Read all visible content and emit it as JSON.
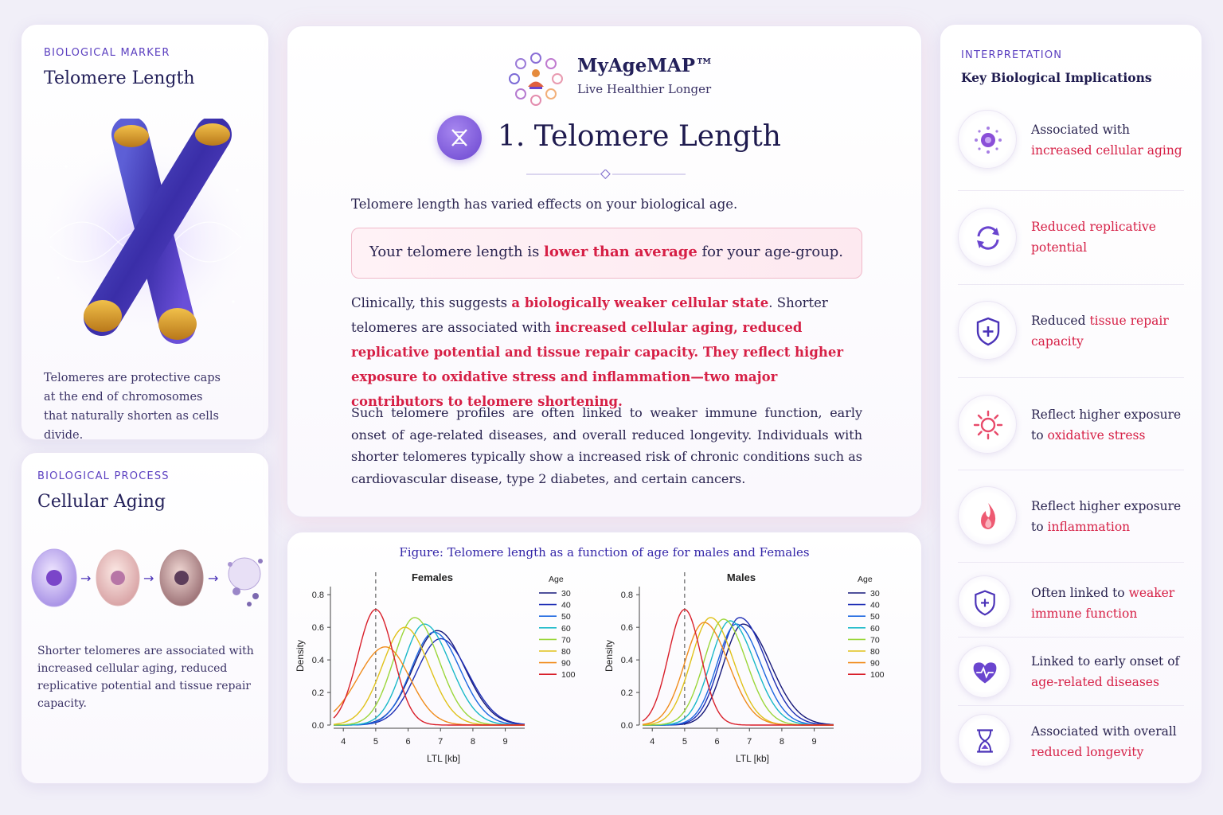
{
  "marker": {
    "kicker": "BIOLOGICAL MARKER",
    "title": "Telomere Length",
    "description": "Telomeres are protective caps at the end of chromosomes that naturally shorten as cells divide."
  },
  "process": {
    "kicker": "BIOLOGICAL PROCESS",
    "title": "Cellular Aging",
    "description": "Shorter telomeres are associated with increased cellular aging, reduced replicative potential and tissue repair capacity."
  },
  "brand": {
    "name": "MyAgeMAP™",
    "tagline": "Live Healthier Longer"
  },
  "main": {
    "section_title": "1. Telomere Length",
    "intro": "Telomere length has varied effects on your biological age.",
    "result_prefix": "Your telomere length is ",
    "result_emph": "lower than average",
    "result_suffix": " for your age-group.",
    "clinical_prefix": "Clinically, this suggests ",
    "clinical_emph1": " a  biologically weaker cellular state",
    "clinical_mid": ". Shorter telomeres are associated with ",
    "clinical_emph2": "increased cellular aging, reduced replicative potential and tissue repair capacity. They reflect higher exposure to oxidative stress and inflammation—two major contributors to telomere shortening.",
    "profiles": "Such telomere profiles are often linked to weaker immune function, early onset of age-related diseases, and overall reduced longevity. Individuals with shorter telomeres typically show a increased risk of chronic conditions such as cardiovascular disease, type 2 diabetes, and certain cancers."
  },
  "figure": {
    "caption": "Figure: Telomere length as a function of age for males and Females"
  },
  "chart_data": [
    {
      "type": "line",
      "title": "Females",
      "xlabel": "LTL [kb]",
      "ylabel": "Density",
      "xlim": [
        3.7,
        9.6
      ],
      "ylim": [
        0,
        0.85
      ],
      "xticks": [
        4,
        5,
        6,
        7,
        8,
        9
      ],
      "yticks": [
        "0.0",
        "0.2",
        "0.4",
        "0.6",
        "0.8"
      ],
      "reference_line_x": 5,
      "legend_title": "Age",
      "legend_position": "top-right",
      "series": [
        {
          "name": "30",
          "color": "#16187a",
          "peak": 6.9,
          "height": 0.58,
          "sd_left": 0.75,
          "sd_right": 0.85
        },
        {
          "name": "40",
          "color": "#1f2fb5",
          "peak": 7.0,
          "height": 0.53,
          "sd_left": 0.75,
          "sd_right": 0.85
        },
        {
          "name": "50",
          "color": "#1d67e0",
          "peak": 6.8,
          "height": 0.57,
          "sd_left": 0.7,
          "sd_right": 0.8
        },
        {
          "name": "60",
          "color": "#19b8c8",
          "peak": 6.5,
          "height": 0.62,
          "sd_left": 0.65,
          "sd_right": 0.8
        },
        {
          "name": "70",
          "color": "#9bd63a",
          "peak": 6.2,
          "height": 0.66,
          "sd_left": 0.65,
          "sd_right": 0.75
        },
        {
          "name": "80",
          "color": "#e0c21a",
          "peak": 5.9,
          "height": 0.6,
          "sd_left": 0.7,
          "sd_right": 0.75
        },
        {
          "name": "90",
          "color": "#f08c1c",
          "peak": 5.3,
          "height": 0.48,
          "sd_left": 0.85,
          "sd_right": 0.75
        },
        {
          "name": "100",
          "color": "#d91f2a",
          "peak": 5.0,
          "height": 0.71,
          "sd_left": 0.55,
          "sd_right": 0.55
        }
      ]
    },
    {
      "type": "line",
      "title": "Males",
      "xlabel": "LTL [kb]",
      "ylabel": "Density",
      "xlim": [
        3.7,
        9.6
      ],
      "ylim": [
        0,
        0.85
      ],
      "xticks": [
        4,
        5,
        6,
        7,
        8,
        9
      ],
      "yticks": [
        "0.0",
        "0.2",
        "0.4",
        "0.6",
        "0.8"
      ],
      "reference_line_x": 5,
      "legend_title": "Age",
      "legend_position": "top-right",
      "series": [
        {
          "name": "30",
          "color": "#16187a",
          "peak": 6.8,
          "height": 0.62,
          "sd_left": 0.6,
          "sd_right": 0.85
        },
        {
          "name": "40",
          "color": "#1f2fb5",
          "peak": 6.7,
          "height": 0.66,
          "sd_left": 0.6,
          "sd_right": 0.8
        },
        {
          "name": "50",
          "color": "#1d67e0",
          "peak": 6.6,
          "height": 0.62,
          "sd_left": 0.6,
          "sd_right": 0.75
        },
        {
          "name": "60",
          "color": "#19b8c8",
          "peak": 6.4,
          "height": 0.64,
          "sd_left": 0.6,
          "sd_right": 0.75
        },
        {
          "name": "70",
          "color": "#9bd63a",
          "peak": 6.2,
          "height": 0.65,
          "sd_left": 0.6,
          "sd_right": 0.7
        },
        {
          "name": "80",
          "color": "#e0c21a",
          "peak": 5.8,
          "height": 0.66,
          "sd_left": 0.6,
          "sd_right": 0.7
        },
        {
          "name": "90",
          "color": "#f08c1c",
          "peak": 5.6,
          "height": 0.63,
          "sd_left": 0.6,
          "sd_right": 0.75
        },
        {
          "name": "100",
          "color": "#d91f2a",
          "peak": 5.0,
          "height": 0.71,
          "sd_left": 0.5,
          "sd_right": 0.5
        }
      ]
    }
  ],
  "interpretation": {
    "kicker": "INTERPRETATION",
    "title": "Key Biological Implications",
    "items": [
      {
        "icon": "cell-icon",
        "plain": "Associated with ",
        "emph": "increased cellular aging"
      },
      {
        "icon": "cycle-arrows-icon",
        "plain": "",
        "emph": "Reduced replicative potential"
      },
      {
        "icon": "shield-plus-icon",
        "plain": "Reduced ",
        "emph": "tissue repair capacity"
      },
      {
        "icon": "sun-icon",
        "plain": "Reflect higher exposure to ",
        "emph": "oxidative stress"
      },
      {
        "icon": "flame-icon",
        "plain": "Reflect higher exposure to ",
        "emph": "inflammation"
      },
      {
        "icon": "shield-icon",
        "plain": "Often linked to ",
        "emph": "weaker immune function"
      },
      {
        "icon": "heart-pulse-icon",
        "plain": "Linked to early onset of ",
        "emph": "age-related diseases"
      },
      {
        "icon": "hourglass-icon",
        "plain": "Associated with overall ",
        "emph": "reduced longevity"
      }
    ]
  },
  "colors": {
    "accent_purple": "#5b3fc0",
    "emphasis_red": "#d61f45",
    "text_dark": "#23205a"
  }
}
